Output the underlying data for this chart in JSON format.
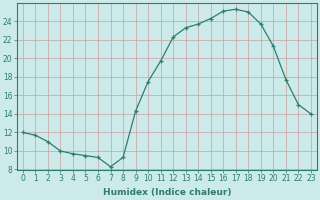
{
  "x": [
    0,
    1,
    2,
    3,
    4,
    5,
    6,
    7,
    8,
    9,
    10,
    11,
    12,
    13,
    14,
    15,
    16,
    17,
    18,
    19,
    20,
    21,
    22,
    23
  ],
  "y": [
    12.0,
    11.7,
    11.0,
    10.0,
    9.7,
    9.5,
    9.3,
    8.3,
    9.3,
    14.3,
    17.5,
    19.7,
    22.3,
    23.3,
    23.7,
    24.3,
    25.1,
    25.3,
    25.0,
    23.7,
    21.3,
    17.7,
    15.0,
    14.0
  ],
  "line_color": "#2e7d6e",
  "marker": "+",
  "marker_size": 3,
  "bg_color": "#cceaea",
  "grid_color": "#b8d8d8",
  "xlabel": "Humidex (Indice chaleur)",
  "xlim": [
    -0.5,
    23.5
  ],
  "ylim": [
    8,
    26
  ],
  "yticks": [
    8,
    10,
    12,
    14,
    16,
    18,
    20,
    22,
    24
  ],
  "xticks": [
    0,
    1,
    2,
    3,
    4,
    5,
    6,
    7,
    8,
    9,
    10,
    11,
    12,
    13,
    14,
    15,
    16,
    17,
    18,
    19,
    20,
    21,
    22,
    23
  ],
  "tick_fontsize": 5.5,
  "label_fontsize": 6.5
}
